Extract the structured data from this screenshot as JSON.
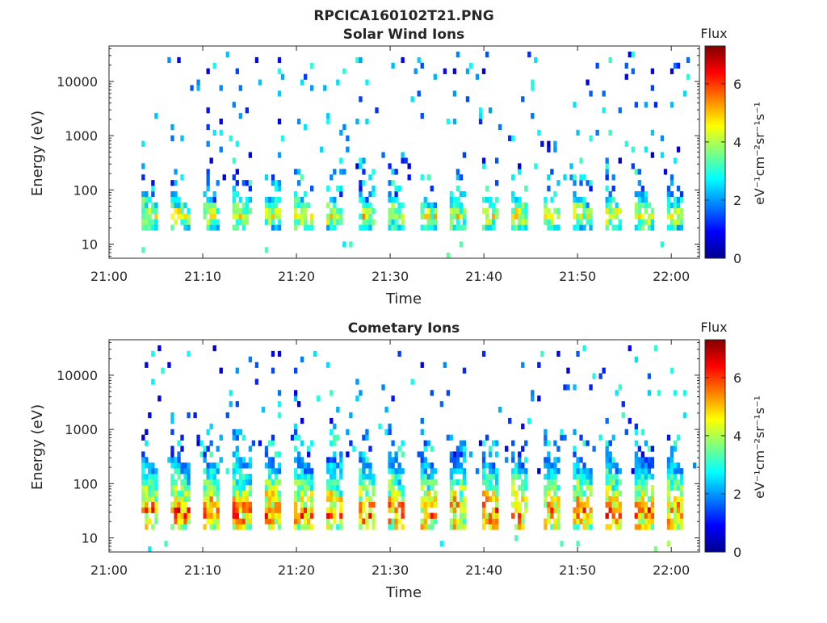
{
  "figure_title": "RPCICA160102T21.PNG",
  "chart_data": [
    {
      "type": "heatmap",
      "title": "Solar Wind Ions",
      "xlabel": "Time",
      "ylabel": "Energy (eV)",
      "x_ticks": [
        "21:00",
        "21:10",
        "21:20",
        "21:30",
        "21:40",
        "21:50",
        "22:00"
      ],
      "xlim": [
        "21:00",
        "22:03"
      ],
      "y_scale": "log",
      "y_ticks": [
        "10",
        "100",
        "1000",
        "10000"
      ],
      "ylim": [
        5.5,
        45000
      ],
      "colorbar": {
        "label": "Flux",
        "units": "eV⁻¹cm⁻²sr⁻¹s⁻¹",
        "ticks": [
          "0",
          "2",
          "4",
          "6"
        ],
        "range": [
          0,
          7.3
        ],
        "colormap": "jet"
      },
      "pattern": {
        "sweep_period_min": 3.3,
        "sweep_start_min": 3.4,
        "core_energy_eV": [
          17,
          100
        ],
        "peak_flux": 5.0,
        "background_scatter": "sparse pixels 150-30000 eV, flux 1-3"
      }
    },
    {
      "type": "heatmap",
      "title": "Cometary Ions",
      "xlabel": "Time",
      "ylabel": "Energy (eV)",
      "x_ticks": [
        "21:00",
        "21:10",
        "21:20",
        "21:30",
        "21:40",
        "21:50",
        "22:00"
      ],
      "xlim": [
        "21:00",
        "22:03"
      ],
      "y_scale": "log",
      "y_ticks": [
        "10",
        "100",
        "1000",
        "10000"
      ],
      "ylim": [
        5.5,
        45000
      ],
      "colorbar": {
        "label": "Flux",
        "units": "eV⁻¹cm⁻²sr⁻¹s⁻¹",
        "ticks": [
          "0",
          "2",
          "4",
          "6"
        ],
        "range": [
          0,
          7.3
        ],
        "colormap": "jet"
      },
      "pattern": {
        "sweep_period_min": 3.3,
        "sweep_start_min": 3.4,
        "core_energy_eV": [
          15,
          400
        ],
        "peak_flux": 6.3,
        "background_scatter": "sparse pixels up to 20000 eV"
      }
    }
  ]
}
